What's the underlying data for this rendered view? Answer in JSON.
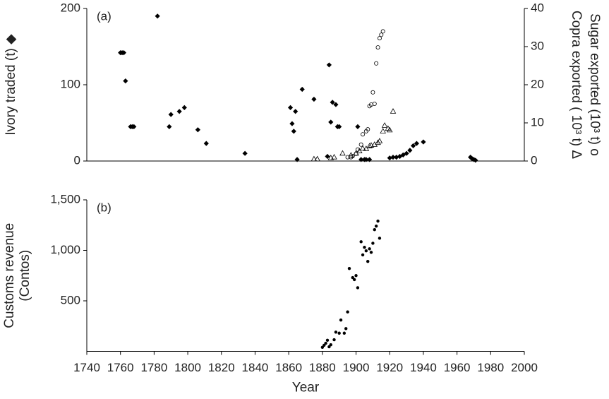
{
  "chart_data": [
    {
      "type": "scatter",
      "panel_label": "(a)",
      "ylabel": "Ivory traded (t) ◆",
      "y2labels": [
        "Copra exported ( 10³ t) Δ",
        "Sugar exported (10³ t) o"
      ],
      "xlim": [
        1740,
        2000
      ],
      "ylim": [
        0,
        200
      ],
      "yticks": [
        0,
        100,
        200
      ],
      "y2lim": [
        0,
        40
      ],
      "y2ticks": [
        0,
        10,
        20,
        30,
        40
      ],
      "series": [
        {
          "marker": "diamond",
          "color": "#000000",
          "x": [
            1760,
            1761,
            1762,
            1763,
            1766,
            1767,
            1768,
            1782,
            1789,
            1790,
            1795,
            1798,
            1806,
            1811,
            1834,
            1861,
            1862,
            1863,
            1864,
            1865,
            1868,
            1875,
            1883,
            1884,
            1885,
            1886,
            1888,
            1889,
            1890,
            1901,
            1903,
            1905,
            1906,
            1908,
            1920,
            1922,
            1924,
            1926,
            1928,
            1930,
            1932,
            1934,
            1936,
            1940,
            1968,
            1969,
            1970,
            1971
          ],
          "values": [
            142,
            142,
            142,
            105,
            45,
            45,
            45,
            190,
            45,
            61,
            65,
            70,
            41,
            23,
            10,
            70,
            49,
            39,
            65,
            2,
            94,
            81,
            6,
            126,
            51,
            77,
            74,
            45,
            45,
            45,
            2,
            2,
            2,
            2,
            4,
            5,
            5,
            6,
            8,
            10,
            14,
            20,
            23,
            25,
            5,
            3,
            2,
            1
          ]
        },
        {
          "marker": "triangle",
          "color": "#000000",
          "axis": "y2",
          "x": [
            1875,
            1877,
            1885,
            1887,
            1892,
            1897,
            1900,
            1902,
            1904,
            1906,
            1908,
            1909,
            1911,
            1913,
            1914,
            1916,
            1917,
            1919,
            1920,
            1922
          ],
          "values": [
            0.5,
            0.5,
            0.8,
            1,
            2,
            1.5,
            2,
            2.6,
            3.3,
            3.2,
            3.9,
            4.1,
            4.3,
            4.8,
            5.2,
            7.8,
            9.3,
            8.5,
            8.1,
            13
          ]
        },
        {
          "marker": "circle",
          "color": "#000000",
          "axis": "y2",
          "x": [
            1895,
            1897,
            1898,
            1900,
            1901,
            1903,
            1904,
            1906,
            1907,
            1908,
            1909,
            1910,
            1911,
            1912,
            1913,
            1914,
            1915,
            1916
          ],
          "values": [
            1,
            1,
            1.3,
            1.9,
            3,
            4.3,
            7,
            7.8,
            8.3,
            14.4,
            14.8,
            18,
            15,
            25.6,
            29.8,
            32.2,
            33.1,
            34
          ]
        }
      ]
    },
    {
      "type": "scatter",
      "panel_label": "(b)",
      "ylabel": [
        "Customs revenue",
        "(Contos)"
      ],
      "xlabel": "Year",
      "xlim": [
        1740,
        2000
      ],
      "xticks": [
        1740,
        1760,
        1780,
        1800,
        1820,
        1840,
        1860,
        1880,
        1900,
        1920,
        1940,
        1960,
        1980,
        2000
      ],
      "ylim": [
        0,
        1500
      ],
      "yticks": [
        500,
        {
          "value": 1000,
          "label": "1,000"
        },
        {
          "value": 1500,
          "label": "1,500"
        }
      ],
      "series": [
        {
          "marker": "dot",
          "color": "#000000",
          "x": [
            1880,
            1881,
            1882,
            1883,
            1884,
            1885,
            1887,
            1888,
            1890,
            1891,
            1893,
            1894,
            1895,
            1896,
            1898,
            1899,
            1900,
            1901,
            1903,
            1904,
            1905,
            1906,
            1907,
            1908,
            1909,
            1910,
            1911,
            1912,
            1913,
            1914
          ],
          "values": [
            40,
            60,
            80,
            110,
            45,
            65,
            115,
            190,
            180,
            310,
            180,
            225,
            390,
            820,
            730,
            710,
            750,
            630,
            1085,
            955,
            1030,
            995,
            890,
            1015,
            980,
            1070,
            1205,
            1240,
            1290,
            1120
          ]
        }
      ]
    }
  ]
}
